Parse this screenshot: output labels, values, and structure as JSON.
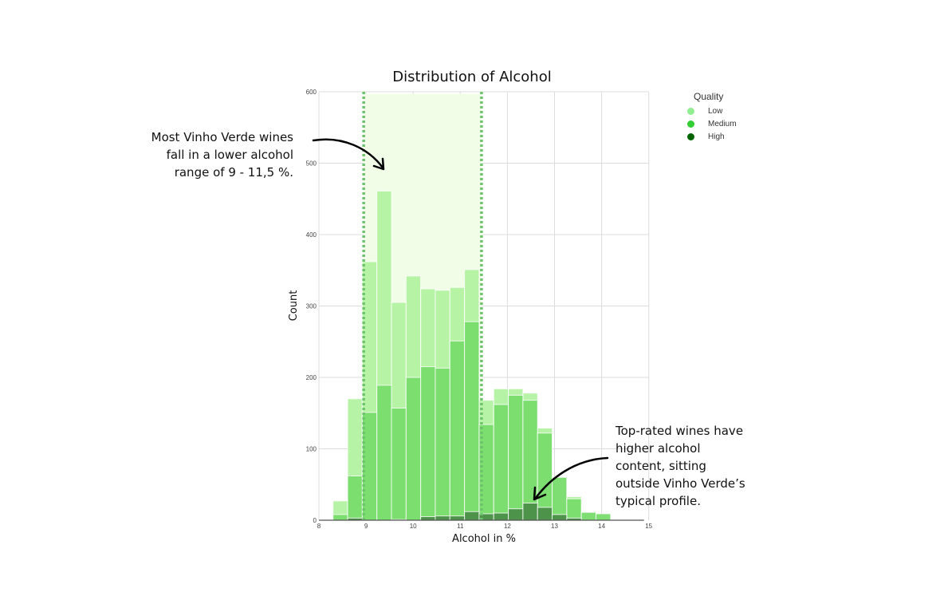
{
  "chart_data": {
    "type": "histogram",
    "title": "Distribution of Alcohol",
    "xlabel": "Alcohol in %",
    "ylabel": "Count",
    "xlim": [
      8,
      15
    ],
    "ylim": [
      0,
      600
    ],
    "xticks": [
      "8",
      "9",
      "10",
      "11",
      "12",
      "13",
      "14",
      "15"
    ],
    "yticks": [
      "0",
      "100",
      "200",
      "300",
      "400",
      "500",
      "600"
    ],
    "grid": true,
    "bin_start": 8.3,
    "bin_width": 0.31,
    "legend": {
      "title": "Quality",
      "placement": "right"
    },
    "series": [
      {
        "name": "Low",
        "color": "#90ee90",
        "values": [
          27,
          170,
          362,
          461,
          305,
          342,
          324,
          322,
          326,
          351,
          168,
          184,
          184,
          178,
          129,
          0,
          33,
          0,
          0
        ]
      },
      {
        "name": "Medium",
        "color": "#32cd32",
        "values": [
          8,
          62,
          151,
          189,
          157,
          200,
          215,
          213,
          251,
          278,
          134,
          162,
          175,
          168,
          122,
          60,
          30,
          11,
          9
        ]
      },
      {
        "name": "High",
        "color": "#006400",
        "values": [
          0,
          3,
          0,
          0,
          1,
          0,
          5,
          6,
          6,
          12,
          9,
          10,
          16,
          24,
          18,
          8,
          3,
          0,
          0
        ]
      }
    ],
    "highlight_range": [
      8.95,
      11.45
    ],
    "annotations": [
      {
        "lines": [
          "Most Vinho Verde wines",
          "fall in a lower alcohol",
          "range of 9 - 11,5 %."
        ]
      },
      {
        "lines": [
          "Top-rated wines have",
          "higher alcohol",
          "content, sitting",
          "outside Vinho Verde’s",
          "typical profile."
        ]
      }
    ]
  }
}
